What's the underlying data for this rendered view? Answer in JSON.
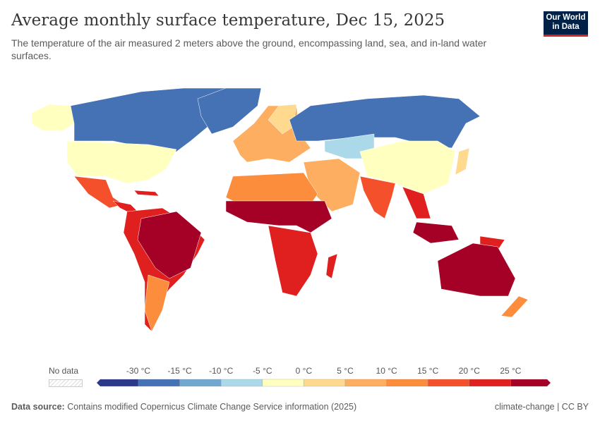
{
  "header": {
    "title": "Average monthly surface temperature, Dec 15, 2025",
    "subtitle": "The temperature of the air measured 2 meters above the ground, encompassing land, sea, and in-land water surfaces.",
    "logo_text": "Our World in Data"
  },
  "legend": {
    "no_data_label": "No data",
    "ticks": [
      "-30 °C",
      "-15 °C",
      "-10 °C",
      "-5 °C",
      "0 °C",
      "5 °C",
      "10 °C",
      "15 °C",
      "20 °C",
      "25 °C"
    ],
    "bin_colors": [
      "#2d3a8c",
      "#4572b5",
      "#72a8cf",
      "#abd9e9",
      "#ffffbf",
      "#fed98e",
      "#fdae61",
      "#fb8d3d",
      "#f4502c",
      "#e0201f",
      "#a50026"
    ]
  },
  "footer": {
    "source_label": "Data source:",
    "source_text": "Contains modified Copernicus Climate Change Service information (2025)",
    "license": "climate-change | CC BY"
  }
}
